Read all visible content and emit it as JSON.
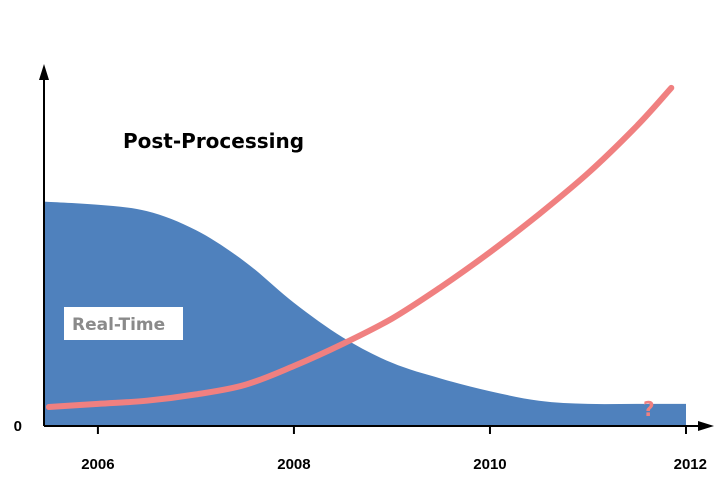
{
  "chart_data": {
    "type": "area",
    "title": "",
    "xlabel": "",
    "ylabel": "",
    "xlim": [
      2005.45,
      2012.0
    ],
    "ylim": [
      0,
      100
    ],
    "x_ticks": [
      "2006",
      "2008",
      "2010",
      "2012"
    ],
    "y_ticks": [
      "0"
    ],
    "grid": false,
    "series": [
      {
        "kind": "area",
        "color": "#4f81bd",
        "x": [
          2005.45,
          2006.0,
          2006.5,
          2007.0,
          2007.5,
          2008.0,
          2008.5,
          2009.0,
          2009.5,
          2010.0,
          2010.5,
          2011.0,
          2011.5,
          2012.0
        ],
        "y": [
          71,
          70,
          68,
          62,
          52,
          39,
          28,
          20,
          15,
          11,
          8,
          7,
          7,
          7
        ]
      },
      {
        "kind": "line",
        "color": "#f08080",
        "x": [
          2005.5,
          2006.0,
          2006.5,
          2007.0,
          2007.5,
          2008.0,
          2008.5,
          2009.0,
          2009.5,
          2010.0,
          2010.5,
          2011.0,
          2011.5,
          2011.85
        ],
        "y": [
          6,
          7,
          8,
          10,
          13,
          19,
          26,
          34,
          44,
          55,
          67,
          80,
          95,
          107
        ]
      }
    ],
    "annotations": {
      "post_processing": "Post-Processing",
      "real_time": "Real-Time",
      "question": "?"
    }
  }
}
